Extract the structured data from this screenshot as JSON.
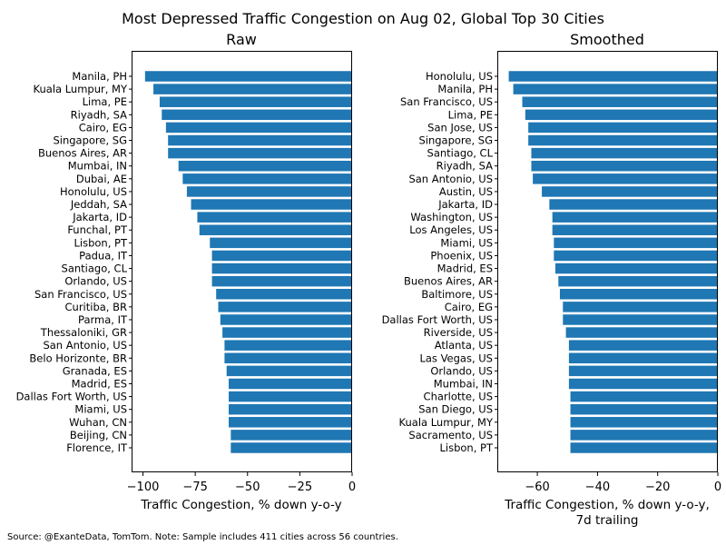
{
  "chart_data": {
    "title": "Most Depressed Traffic Congestion on Aug 02, Global Top 30 Cities",
    "source_note": "Source: @ExanteData, TomTom.   Note: Sample includes 411 cities across 56 countries.",
    "bar_color": "#1f77b4",
    "panels": [
      {
        "type": "bar",
        "orientation": "horizontal",
        "subtitle": "Raw",
        "xlabel": [
          "Traffic Congestion, % down y-o-y"
        ],
        "xlim": [
          -105,
          0
        ],
        "xticks": [
          -100,
          -75,
          -50,
          -25,
          0
        ],
        "categories": [
          "Manila, PH",
          "Kuala Lumpur, MY",
          "Lima, PE",
          "Riyadh, SA",
          "Cairo, EG",
          "Singapore, SG",
          "Buenos Aires, AR",
          "Mumbai, IN",
          "Dubai, AE",
          "Honolulu, US",
          "Jeddah, SA",
          "Jakarta, ID",
          "Funchal, PT",
          "Lisbon, PT",
          "Padua, IT",
          "Santiago, CL",
          "Orlando, US",
          "San Francisco, US",
          "Curitiba, BR",
          "Parma, IT",
          "Thessaloniki, GR",
          "San Antonio, US",
          "Belo Horizonte, BR",
          "Granada, ES",
          "Madrid, ES",
          "Dallas Fort Worth, US",
          "Miami, US",
          "Wuhan, CN",
          "Beijing, CN",
          "Florence, IT"
        ],
        "values": [
          -99,
          -95,
          -92,
          -91,
          -89,
          -88,
          -88,
          -83,
          -81,
          -79,
          -77,
          -74,
          -73,
          -68,
          -67,
          -67,
          -67,
          -65,
          -64,
          -63,
          -62,
          -61,
          -61,
          -60,
          -59,
          -59,
          -59,
          -59,
          -58,
          -58
        ]
      },
      {
        "type": "bar",
        "orientation": "horizontal",
        "subtitle": "Smoothed",
        "xlabel": [
          "Traffic Congestion, % down y-o-y,",
          "7d trailing"
        ],
        "xlim": [
          -73,
          0
        ],
        "xticks": [
          -60,
          -40,
          -20,
          0
        ],
        "categories": [
          "Honolulu, US",
          "Manila, PH",
          "San Francisco, US",
          "Lima, PE",
          "San Jose, US",
          "Singapore, SG",
          "Santiago, CL",
          "Riyadh, SA",
          "San Antonio, US",
          "Austin, US",
          "Jakarta, ID",
          "Washington, US",
          "Los Angeles, US",
          "Miami, US",
          "Phoenix, US",
          "Madrid, ES",
          "Buenos Aires, AR",
          "Baltimore, US",
          "Cairo, EG",
          "Dallas Fort Worth, US",
          "Riverside, US",
          "Atlanta, US",
          "Las Vegas, US",
          "Orlando, US",
          "Mumbai, IN",
          "Charlotte, US",
          "San Diego, US",
          "Kuala Lumpur, MY",
          "Sacramento, US",
          "Lisbon, PT"
        ],
        "values": [
          -69.5,
          -68,
          -65,
          -64,
          -63,
          -63,
          -62,
          -62,
          -61.5,
          -58.5,
          -56,
          -55,
          -55,
          -54.5,
          -54.5,
          -54,
          -53,
          -52.5,
          -51.5,
          -51.5,
          -50.5,
          -49.5,
          -49.5,
          -49.5,
          -49.5,
          -49,
          -49,
          -49,
          -49,
          -49
        ]
      }
    ]
  }
}
